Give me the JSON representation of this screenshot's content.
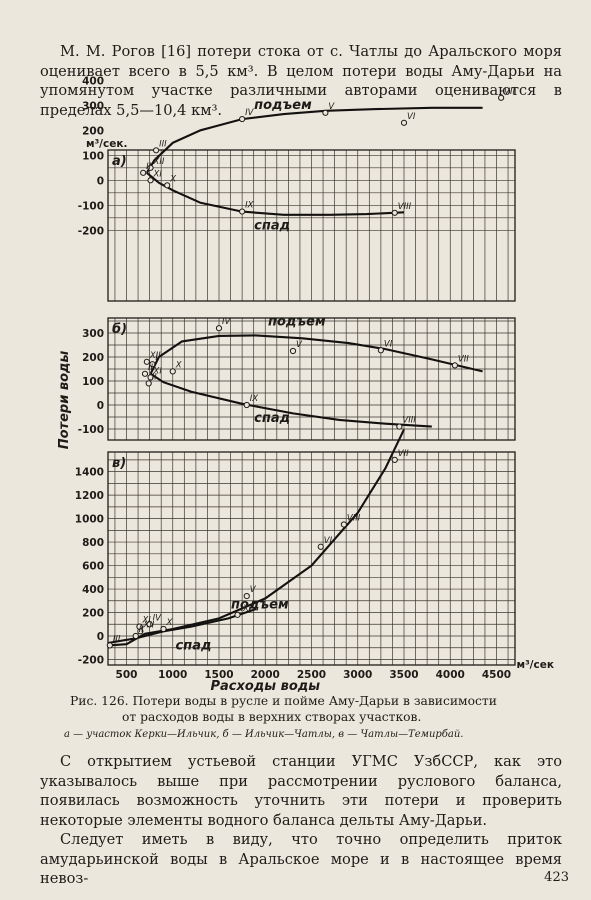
{
  "top_paragraph": "М. М. Рогов [16] потери стока от с. Чатлы до Аральского моря оценивает всего в 5,5 км³. В целом потери воды Аму-Дарьи на упомянутом участке различными авторами оцениваются в пределах 5,5—10,4 км³.",
  "figure": {
    "caption_line1": "Рис. 126. Потери воды в русле и пойме Аму-Дарьи в зависимости",
    "caption_line2": "от расходов воды в верхних створах участков.",
    "legend": "а — участок Керки—Ильчик, б — Ильчик—Чатлы, в — Чатлы—Темирбай."
  },
  "bottom_paragraph_1": "С открытием устьевой станции УГМС УзбССР, как это указывалось выше при рассмотрении руслового баланса, появилась возможность уточнить эти потери и проверить некоторые элементы водного баланса дельты Аму-Дарьи.",
  "bottom_paragraph_2": "Следует иметь в виду, что точно определить приток амударьинской воды в Аральское море и в настоящее время невоз-",
  "page_number": "423",
  "chart_data": [
    {
      "type": "line",
      "panel": "а)",
      "y_unit": "м³/сек.",
      "ylim": [
        -200,
        400
      ],
      "y_ticks": [
        "400",
        "300",
        "200",
        "100",
        "0",
        "-100",
        "-200"
      ],
      "grid": true,
      "series": [
        {
          "name": "подъем",
          "x": [
            720,
            800,
            1000,
            1300,
            1750,
            2200,
            2650,
            3200,
            3800,
            4350
          ],
          "y": [
            30,
            80,
            150,
            200,
            245,
            265,
            278,
            285,
            290,
            290
          ]
        },
        {
          "name": "спад",
          "x": [
            720,
            850,
            1000,
            1300,
            1750,
            2200,
            2700,
            3100,
            3500
          ],
          "y": [
            30,
            -10,
            -40,
            -90,
            -125,
            -138,
            -138,
            -135,
            -128
          ]
        }
      ],
      "points": [
        {
          "label": "II",
          "x": 680,
          "y": 30
        },
        {
          "label": "III",
          "x": 820,
          "y": 120
        },
        {
          "label": "XII",
          "x": 760,
          "y": 50
        },
        {
          "label": "XI",
          "x": 760,
          "y": 0
        },
        {
          "label": "X",
          "x": 940,
          "y": -20
        },
        {
          "label": "IV",
          "x": 1750,
          "y": 245
        },
        {
          "label": "V",
          "x": 2650,
          "y": 270
        },
        {
          "label": "VI",
          "x": 3500,
          "y": 230
        },
        {
          "label": "VII",
          "x": 4550,
          "y": 330
        },
        {
          "label": "IX",
          "x": 1750,
          "y": -125
        },
        {
          "label": "VIII",
          "x": 3400,
          "y": -130
        }
      ]
    },
    {
      "type": "line",
      "panel": "б)",
      "ylim": [
        -100,
        350
      ],
      "y_ticks": [
        "300",
        "200",
        "100",
        "0",
        "-100"
      ],
      "grid": true,
      "series": [
        {
          "name": "подъем",
          "x": [
            760,
            850,
            1100,
            1500,
            1900,
            2400,
            2900,
            3300,
            3800,
            4350
          ],
          "y": [
            130,
            200,
            265,
            288,
            290,
            278,
            258,
            233,
            190,
            140
          ]
        },
        {
          "name": "спад",
          "x": [
            760,
            900,
            1200,
            1750,
            2300,
            2800,
            3300,
            3800
          ],
          "y": [
            130,
            95,
            55,
            5,
            -35,
            -62,
            -78,
            -90
          ]
        }
      ],
      "points": [
        {
          "label": "XII",
          "x": 720,
          "y": 180
        },
        {
          "label": "I",
          "x": 780,
          "y": 170
        },
        {
          "label": "III",
          "x": 700,
          "y": 130
        },
        {
          "label": "II",
          "x": 740,
          "y": 90
        },
        {
          "label": "XI",
          "x": 760,
          "y": 115
        },
        {
          "label": "X",
          "x": 1000,
          "y": 140
        },
        {
          "label": "IV",
          "x": 1500,
          "y": 320
        },
        {
          "label": "V",
          "x": 2300,
          "y": 225
        },
        {
          "label": "VI",
          "x": 3250,
          "y": 228
        },
        {
          "label": "VII",
          "x": 4050,
          "y": 165
        },
        {
          "label": "IX",
          "x": 1800,
          "y": 0
        },
        {
          "label": "VIII",
          "x": 3450,
          "y": -90
        }
      ]
    },
    {
      "type": "line",
      "panel": "в)",
      "xlabel": "Расходы воды",
      "x_unit": "м³/сек",
      "xlim": [
        300,
        4700
      ],
      "x_ticks": [
        "500",
        "1000",
        "1500",
        "2000",
        "2500",
        "3000",
        "3500",
        "4000",
        "4500"
      ],
      "ylim": [
        -200,
        1700
      ],
      "y_ticks": [
        "1400",
        "1200",
        "1000",
        "800",
        "600",
        "400",
        "200",
        "0",
        "-200"
      ],
      "ylabel": "Потери воды",
      "grid": true,
      "series": [
        {
          "name": "подъем",
          "x": [
            300,
            500,
            700,
            1000,
            1500,
            2000,
            2500,
            3000,
            3300,
            3500
          ],
          "y": [
            -80,
            -70,
            20,
            60,
            150,
            320,
            600,
            1050,
            1430,
            1760
          ]
        },
        {
          "name": "спад",
          "x": [
            300,
            600,
            900,
            1200,
            1600,
            1900
          ],
          "y": [
            -60,
            -20,
            40,
            80,
            150,
            230
          ]
        }
      ],
      "points": [
        {
          "label": "III",
          "x": 320,
          "y": -80
        },
        {
          "label": "II",
          "x": 600,
          "y": 0
        },
        {
          "label": "XII",
          "x": 650,
          "y": 40
        },
        {
          "label": "XI",
          "x": 640,
          "y": 80
        },
        {
          "label": "X",
          "x": 900,
          "y": 60
        },
        {
          "label": "IV",
          "x": 750,
          "y": 100
        },
        {
          "label": "V",
          "x": 1800,
          "y": 340
        },
        {
          "label": "IX",
          "x": 1700,
          "y": 180
        },
        {
          "label": "VI",
          "x": 2600,
          "y": 760
        },
        {
          "label": "VIII",
          "x": 2850,
          "y": 950
        },
        {
          "label": "VII",
          "x": 3400,
          "y": 1500
        }
      ]
    }
  ]
}
